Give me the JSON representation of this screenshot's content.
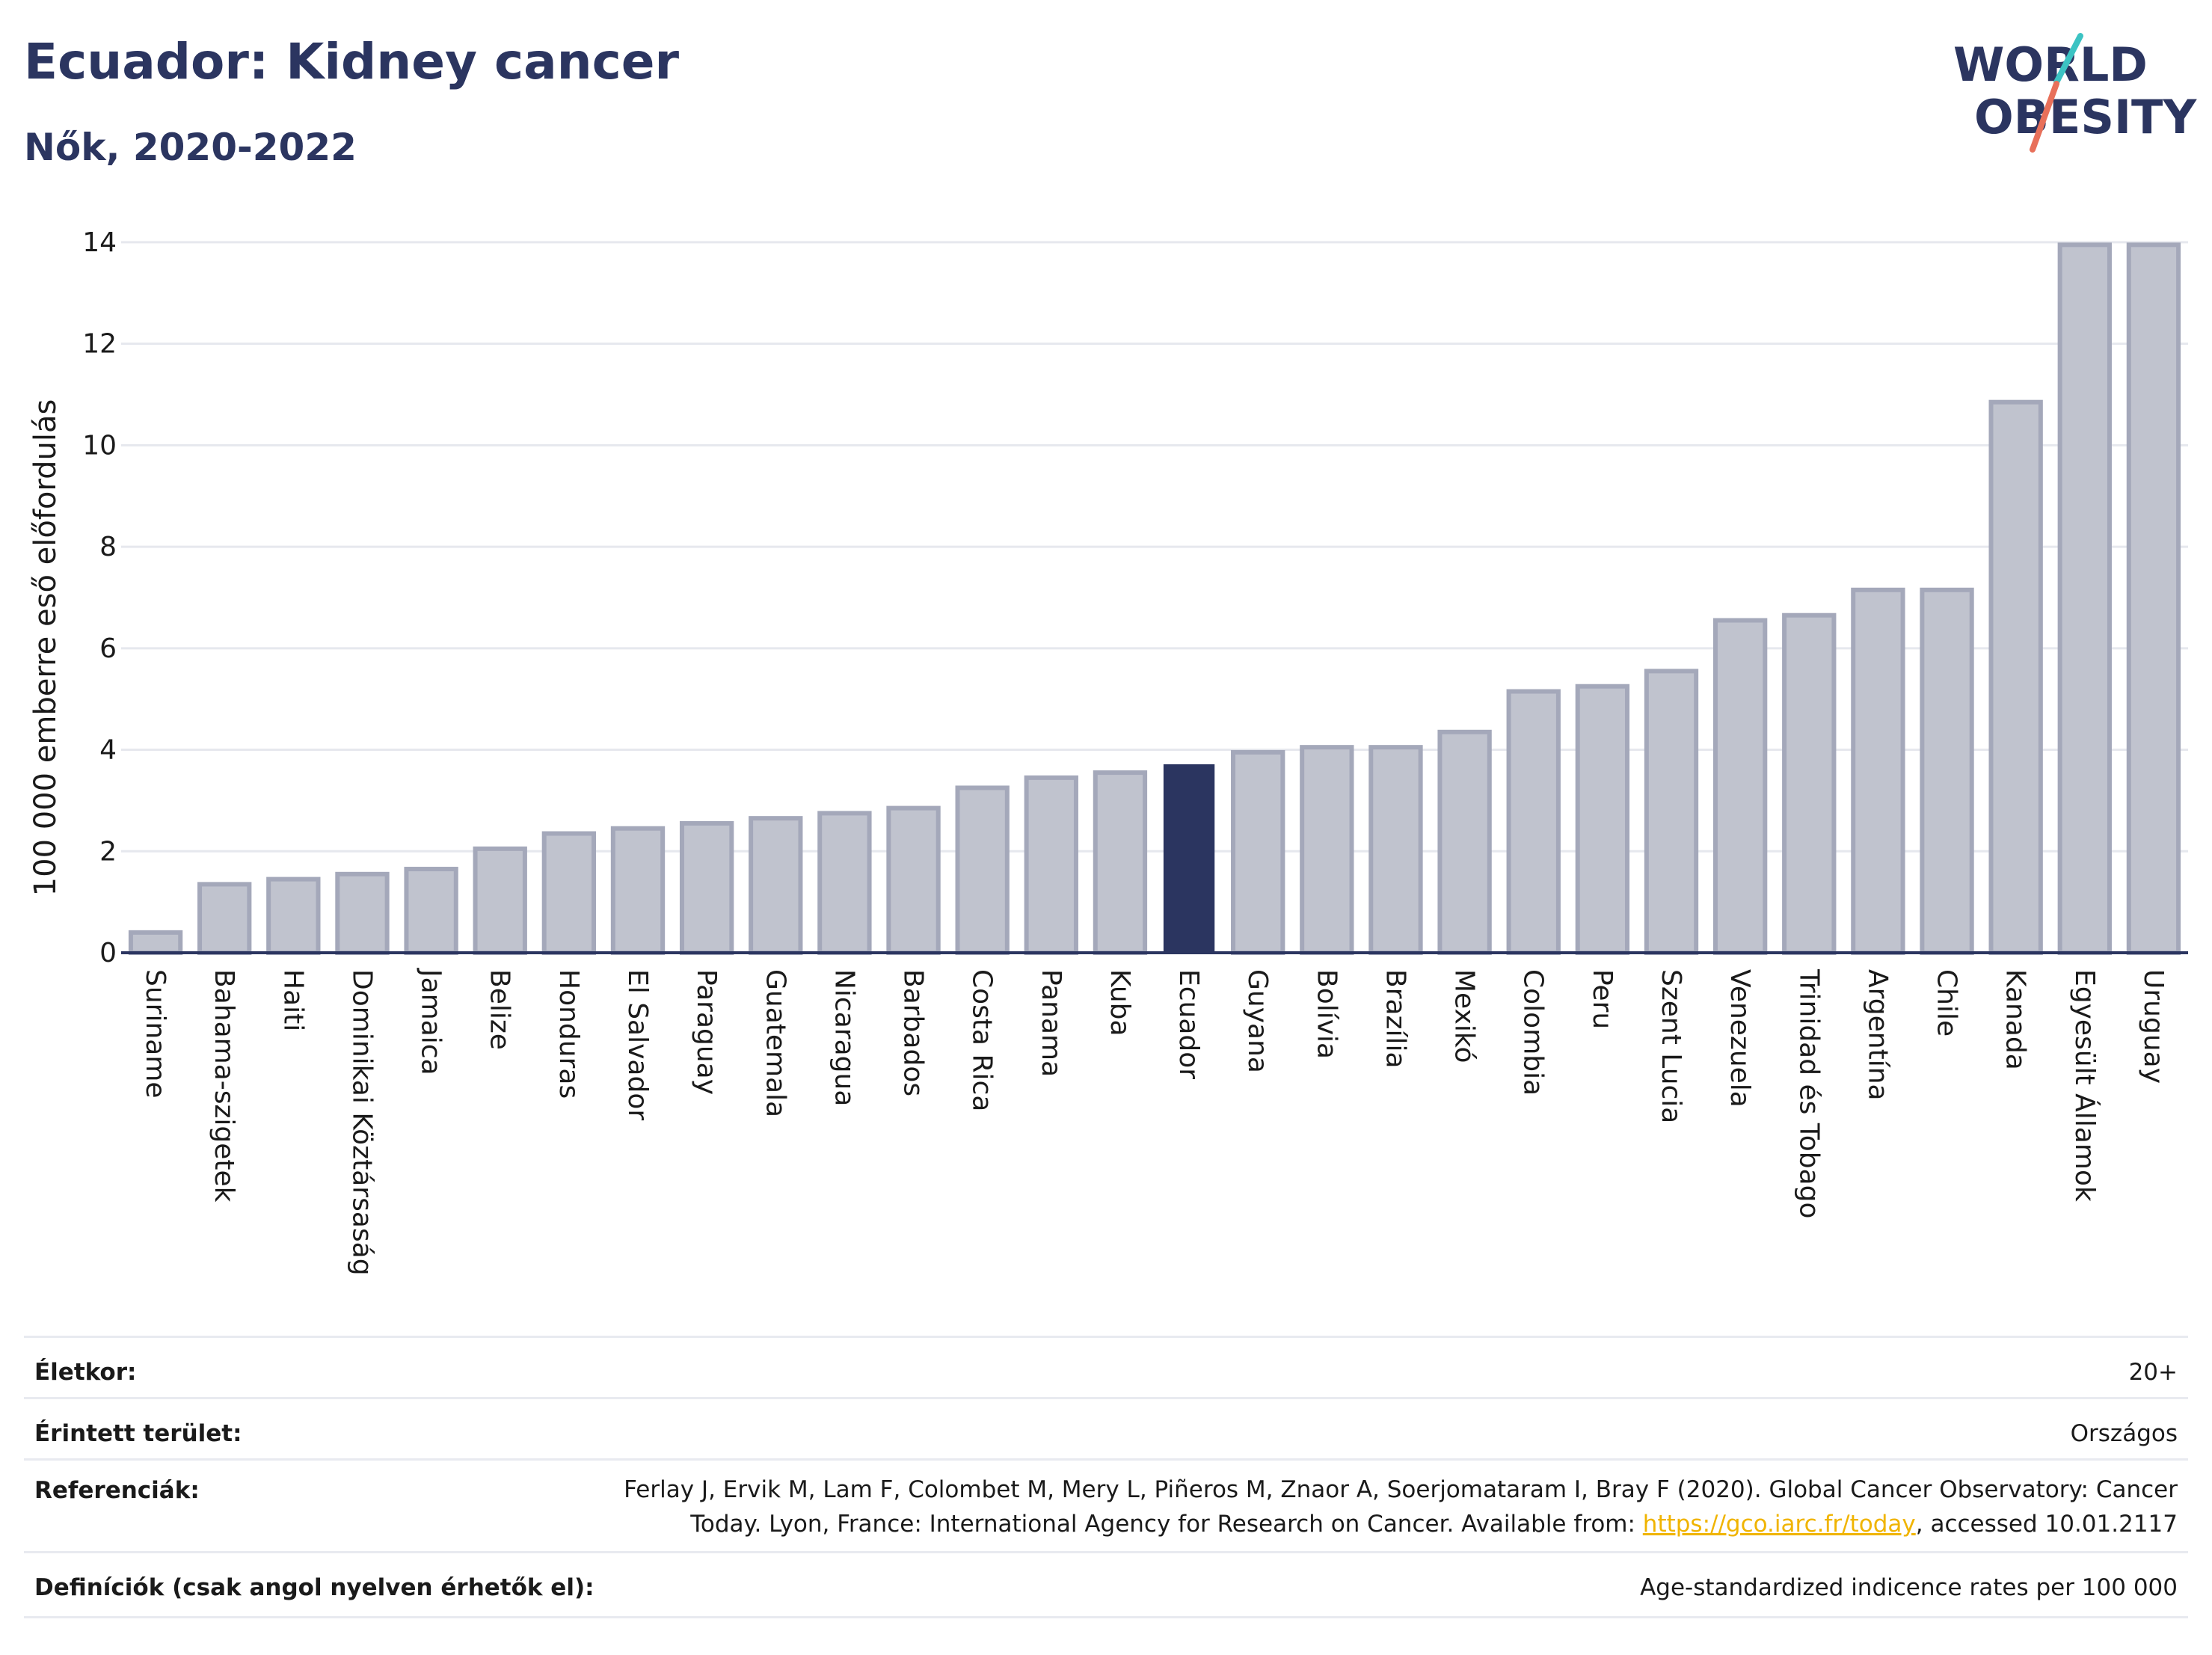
{
  "header": {
    "title": "Ecuador: Kidney cancer",
    "subtitle": "Nők, 2020-2022"
  },
  "logo": {
    "line1": "WORLD",
    "line2": "OBESITY",
    "accent_colors": [
      "#e8705a",
      "#3cc3c3"
    ],
    "text_color": "#2b3560"
  },
  "chart_data": {
    "type": "bar",
    "ylabel": "100 000 emberre eső előfordulás",
    "ylim": [
      0,
      14.5
    ],
    "yticks": [
      0,
      2,
      4,
      6,
      8,
      10,
      12,
      14
    ],
    "grid": true,
    "highlight": "Ecuador",
    "colors": {
      "bar": "#c0c3ce",
      "bar_border": "#a4a8ba",
      "highlight": "#2b3560",
      "grid": "#e6e8ee",
      "axis": "#2b3560"
    },
    "categories": [
      "Suriname",
      "Bahama-szigetek",
      "Haiti",
      "Dominikai Köztársaság",
      "Jamaica",
      "Belize",
      "Honduras",
      "El Salvador",
      "Paraguay",
      "Guatemala",
      "Nicaragua",
      "Barbados",
      "Costa Rica",
      "Panama",
      "Kuba",
      "Ecuador",
      "Guyana",
      "Bolívia",
      "Brazília",
      "Mexikó",
      "Colombia",
      "Peru",
      "Szent Lucia",
      "Venezuela",
      "Trinidad és Tobago",
      "Argentína",
      "Chile",
      "Kanada",
      "Egyesült Államok",
      "Uruguay"
    ],
    "values": [
      0.4,
      1.35,
      1.45,
      1.55,
      1.65,
      2.05,
      2.35,
      2.45,
      2.55,
      2.65,
      2.75,
      2.85,
      3.25,
      3.45,
      3.55,
      3.7,
      3.95,
      4.05,
      4.05,
      4.35,
      5.15,
      5.25,
      5.55,
      6.55,
      6.65,
      7.15,
      7.15,
      10.85,
      13.95,
      13.95
    ]
  },
  "info": {
    "age_label": "Életkor:",
    "age_value": "20+",
    "area_label": "Érintett terület:",
    "area_value": "Országos",
    "ref_label": "Referenciák:",
    "ref_line1": "Ferlay J, Ervik M, Lam F, Colombet M, Mery L, Piñeros M, Znaor A, Soerjomataram I, Bray F (2020). Global Cancer Observatory: Cancer",
    "ref_line2_pre": "Today. Lyon, France: International Agency for Research on Cancer. Available from: ",
    "ref_link": "https://gco.iarc.fr/today",
    "ref_line2_post": ", accessed 10.01.2117",
    "def_label": "Definíciók (csak angol nyelven érhetők el):",
    "def_value": "Age-standardized indicence rates per 100 000"
  }
}
